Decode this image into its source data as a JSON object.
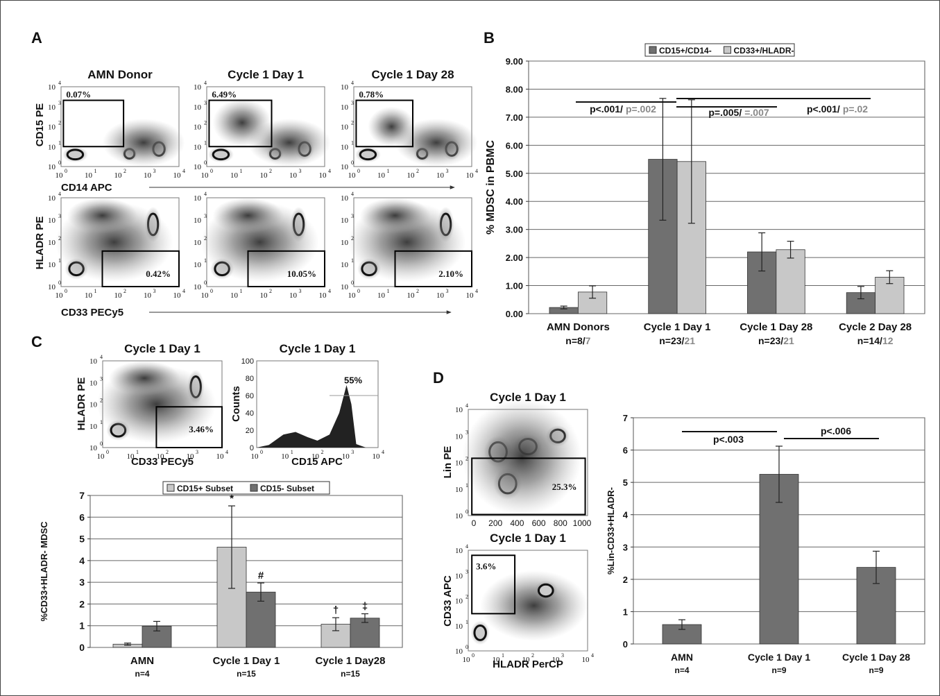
{
  "panel_labels": [
    "A",
    "B",
    "C",
    "D"
  ],
  "log_ticks": {
    "base": "10",
    "exponents": [
      "0",
      "1",
      "2",
      "3",
      "4"
    ]
  },
  "flow_plots": [
    {
      "title": "AMN Donor",
      "gate_label": "0.07%",
      "y_label": "CD15 PE",
      "x_label": "CD14 APC"
    },
    {
      "title": "Cycle 1 Day 1",
      "gate_label": "6.49%"
    },
    {
      "title": "Cycle 1 Day 28",
      "gate_label": "0.78%"
    },
    {
      "gate_label": "0.42%",
      "y_label": "HLADR PE",
      "x_label": "CD33 PECy5"
    },
    {
      "gate_label": "10.05%"
    },
    {
      "gate_label": "2.10%"
    },
    {
      "title": "Cycle 1 Day 1",
      "gate_label": "3.46%",
      "y_label": "HLADR PE",
      "x_label": "CD33 PECy5"
    },
    {
      "title": "Cycle 1 Day 1",
      "gate_label": "55%",
      "y_label": "Counts",
      "x_label": "CD15 APC",
      "y_ticks": [
        0,
        20,
        40,
        60,
        80,
        100
      ]
    },
    {
      "title": "Cycle 1 Day 1",
      "gate_label": "25.3%",
      "y_label": "Lin PE",
      "x_ticks": [
        0,
        200,
        400,
        600,
        800,
        1000
      ]
    },
    {
      "title": "Cycle 1 Day 1",
      "gate_label": "3.6%",
      "y_label": "CD33 APC",
      "x_label": "HLADR PerCP"
    }
  ],
  "chart_data": [
    {
      "type": "bar",
      "y_label": "% MDSC in PBMC",
      "categories": [
        "AMN Donors",
        "Cycle 1 Day 1",
        "Cycle 1 Day 28",
        "Cycle 2 Day 28"
      ],
      "category_notes": [
        [
          "n=8/",
          "7"
        ],
        [
          "n=23/",
          "21"
        ],
        [
          "n=23/",
          "21"
        ],
        [
          "n=14/",
          "12"
        ]
      ],
      "series": [
        {
          "name": "CD15+/CD14-",
          "color": "#707070",
          "values": [
            0.22,
            5.5,
            2.2,
            0.75
          ],
          "errors": [
            0.05,
            2.17,
            0.68,
            0.22
          ]
        },
        {
          "name": "CD33+/HLADR-",
          "color": "#c8c8c8",
          "values": [
            0.77,
            5.42,
            2.28,
            1.3
          ],
          "errors": [
            0.22,
            2.2,
            0.3,
            0.23
          ]
        }
      ],
      "ylim": [
        0,
        9
      ],
      "yticks": [
        {
          "value": 0,
          "label": "0.00"
        },
        {
          "value": 1,
          "label": "1.00"
        },
        {
          "value": 2,
          "label": "2.00"
        },
        {
          "value": 3,
          "label": "3.00"
        },
        {
          "value": 4,
          "label": "4.00"
        },
        {
          "value": 5,
          "label": "5.00"
        },
        {
          "value": 6,
          "label": "6.00"
        },
        {
          "value": 7,
          "label": "7.00"
        },
        {
          "value": 8,
          "label": "8.00"
        },
        {
          "value": 9,
          "label": "9.00"
        }
      ],
      "grid": true,
      "legend": "top",
      "annotations": [
        [
          "p<.001/",
          "p=.002"
        ],
        [
          "p=.005/",
          "=.007"
        ],
        [
          "p<.001/",
          "p=.02"
        ]
      ]
    },
    {
      "type": "bar",
      "y_label": "%CD33+HLADR- MDSC",
      "categories": [
        "AMN",
        "Cycle 1 Day 1",
        "Cycle 1 Day28"
      ],
      "category_notes": [
        "n=4",
        "n=15",
        "n=15"
      ],
      "series": [
        {
          "name": "CD15+ Subset",
          "color": "#c8c8c8",
          "values": [
            0.15,
            4.62,
            1.07
          ],
          "errors": [
            0.05,
            1.9,
            0.3
          ],
          "markers": [
            null,
            "*",
            "†"
          ]
        },
        {
          "name": "CD15- Subset",
          "color": "#707070",
          "values": [
            0.98,
            2.55,
            1.35
          ],
          "errors": [
            0.22,
            0.42,
            0.2
          ],
          "markers": [
            null,
            "#",
            "‡"
          ]
        }
      ],
      "ylim": [
        0,
        7
      ],
      "yticks": [
        0,
        1,
        2,
        3,
        4,
        5,
        6,
        7
      ],
      "grid": true,
      "legend": "top"
    },
    {
      "type": "bar",
      "y_label": "%Lin-CD33+HLADR-",
      "categories": [
        "AMN",
        "Cycle 1 Day 1",
        "Cycle 1 Day 28"
      ],
      "category_notes": [
        "n=4",
        "n=9",
        "n=9"
      ],
      "series": [
        {
          "color": "#707070",
          "values": [
            0.6,
            5.25,
            2.37
          ],
          "errors": [
            0.15,
            0.87,
            0.5
          ]
        }
      ],
      "ylim": [
        0,
        7
      ],
      "yticks": [
        0,
        1,
        2,
        3,
        4,
        5,
        6,
        7
      ],
      "grid": true,
      "annotations": [
        [
          "p<.003"
        ],
        [
          "p<.006"
        ]
      ]
    }
  ]
}
